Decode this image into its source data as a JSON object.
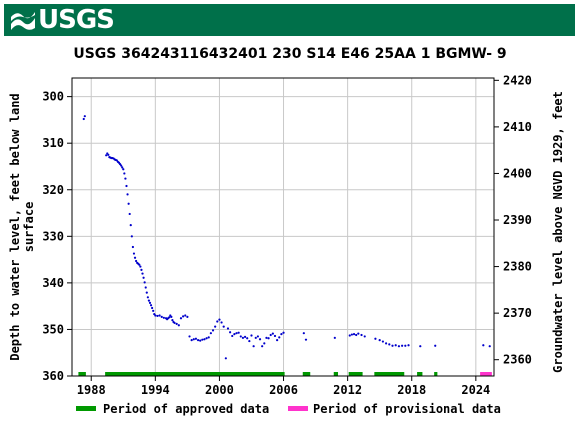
{
  "header": {
    "logo_text": "USGS",
    "bg_color": "#00704a"
  },
  "chart_data": {
    "type": "scatter",
    "title": "USGS 364243116432401 230  S14 E46 25AA  1    BGMW- 9",
    "ylabel": "Depth to water level, feet below land surface",
    "ylabel_lines": [
      "Depth to water level, feet below land",
      "surface"
    ],
    "y2label": "Groundwater level above NGVD 1929, feet",
    "xlim": [
      1986.2,
      2025.7
    ],
    "ylim": [
      360,
      296
    ],
    "y2lim": [
      2356.5,
      2420.5
    ],
    "y_ticks": [
      300,
      310,
      320,
      330,
      340,
      350,
      360
    ],
    "y2_ticks": [
      2360,
      2370,
      2380,
      2390,
      2400,
      2410,
      2420
    ],
    "x_ticks": [
      1988,
      1994,
      2000,
      2006,
      2012,
      2018,
      2024
    ],
    "grid": true,
    "series_color": "#0000cc",
    "series": [
      {
        "x": [
          1987.3,
          1987.4,
          1989.4,
          1989.5,
          1989.6,
          1989.7,
          1989.8,
          1989.9,
          1990.0,
          1990.1,
          1990.2,
          1990.3,
          1990.4,
          1990.5,
          1990.6,
          1990.7,
          1990.8,
          1990.9,
          1991.0,
          1991.1,
          1991.2,
          1991.3,
          1991.4,
          1991.5,
          1991.6,
          1991.7,
          1991.8,
          1991.9,
          1992.0,
          1992.1,
          1992.2,
          1992.3,
          1992.4,
          1992.5,
          1992.6,
          1992.7,
          1992.8,
          1992.9,
          1993.0,
          1993.1,
          1993.2,
          1993.3,
          1993.4,
          1993.5,
          1993.6,
          1993.7,
          1993.8,
          1993.9,
          1994.0,
          1994.2,
          1994.4,
          1994.6,
          1994.8,
          1995.0,
          1995.1,
          1995.2,
          1995.3,
          1995.4,
          1995.5,
          1995.6,
          1995.7,
          1995.8,
          1996.0,
          1996.2,
          1996.4,
          1996.6,
          1996.8,
          1997.0,
          1997.2,
          1997.4,
          1997.6,
          1997.8,
          1998.0,
          1998.2,
          1998.4,
          1998.6,
          1998.8,
          1999.0,
          1999.2,
          1999.4,
          1999.6,
          1999.8,
          2000.0,
          2000.2,
          2000.4,
          2000.6,
          2000.8,
          2001.0,
          2001.2,
          2001.4,
          2001.6,
          2001.8,
          2002.0,
          2002.2,
          2002.4,
          2002.6,
          2002.8,
          2003.0,
          2003.2,
          2003.4,
          2003.6,
          2003.8,
          2004.0,
          2004.2,
          2004.4,
          2004.6,
          2004.8,
          2005.0,
          2005.2,
          2005.4,
          2005.6,
          2005.8,
          2006.0,
          2007.9,
          2008.1,
          2010.8,
          2012.2,
          2012.4,
          2012.6,
          2012.8,
          2013.0,
          2013.3,
          2013.6,
          2014.6,
          2015.0,
          2015.3,
          2015.6,
          2015.9,
          2016.2,
          2016.5,
          2016.8,
          2017.1,
          2017.4,
          2017.7,
          2018.8,
          2020.2,
          2024.7,
          2025.3
        ],
        "y": [
          304.8,
          304.2,
          312.6,
          312.2,
          312.5,
          313.0,
          313.1,
          313.2,
          313.2,
          313.3,
          313.5,
          313.6,
          313.7,
          314.0,
          314.2,
          314.5,
          314.8,
          315.2,
          315.6,
          316.5,
          317.6,
          319.2,
          321.0,
          323.0,
          325.2,
          327.6,
          330.0,
          332.3,
          333.7,
          334.6,
          335.3,
          335.7,
          335.9,
          336.1,
          336.5,
          337.2,
          338.0,
          338.9,
          339.9,
          341.0,
          342.1,
          343.1,
          343.8,
          344.3,
          344.8,
          345.4,
          346.0,
          346.7,
          347.0,
          347.1,
          347.0,
          347.3,
          347.5,
          347.6,
          347.8,
          347.6,
          347.4,
          347.0,
          347.3,
          348.0,
          348.4,
          348.6,
          348.8,
          349.1,
          347.6,
          347.2,
          347.0,
          347.3,
          351.5,
          352.3,
          352.1,
          352.0,
          352.3,
          352.4,
          352.2,
          352.1,
          351.9,
          351.7,
          350.8,
          350.2,
          349.4,
          348.3,
          347.9,
          348.5,
          349.4,
          356.2,
          349.8,
          350.6,
          351.4,
          351.0,
          350.8,
          350.7,
          351.5,
          351.8,
          351.6,
          351.9,
          352.5,
          351.3,
          353.6,
          351.8,
          351.5,
          352.1,
          353.6,
          353.0,
          351.8,
          351.9,
          351.2,
          350.9,
          351.4,
          352.3,
          351.7,
          351.0,
          350.7,
          350.8,
          352.2,
          351.8,
          351.3,
          351.1,
          351.0,
          351.2,
          350.9,
          351.2,
          351.5,
          352.0,
          352.3,
          352.6,
          353.0,
          353.2,
          353.5,
          353.4,
          353.6,
          353.5,
          353.5,
          353.4,
          353.6,
          353.5,
          353.4,
          353.6
        ]
      }
    ],
    "approved_periods": [
      [
        1986.8,
        1987.5
      ],
      [
        1989.3,
        2006.1
      ],
      [
        2007.8,
        2008.5
      ],
      [
        2010.7,
        2011.1
      ],
      [
        2012.1,
        2013.4
      ],
      [
        2014.5,
        2017.3
      ],
      [
        2018.5,
        2019.0
      ],
      [
        2020.1,
        2020.4
      ]
    ],
    "provisional_periods": [
      [
        2024.4,
        2025.5
      ]
    ],
    "approved_color": "#009900",
    "provisional_color": "#ff33cc",
    "legend": {
      "approved_label": "Period of approved data",
      "provisional_label": "Period of provisional data"
    }
  }
}
